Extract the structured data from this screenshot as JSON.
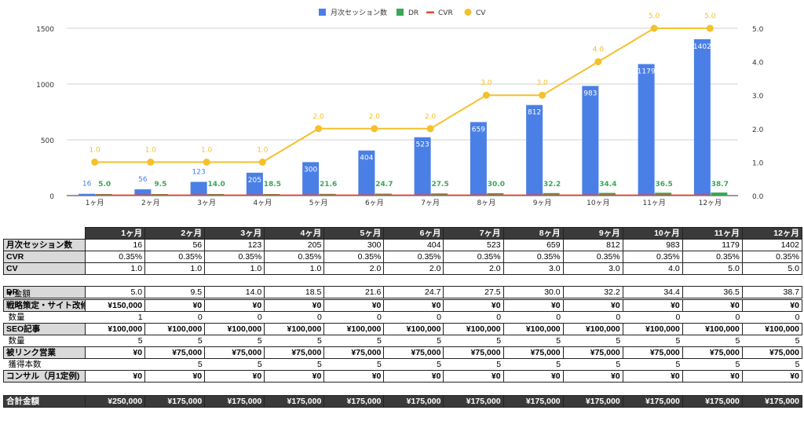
{
  "chart_data": {
    "type": "bar",
    "categories": [
      "1ヶ月",
      "2ヶ月",
      "3ヶ月",
      "4ヶ月",
      "5ヶ月",
      "6ヶ月",
      "7ヶ月",
      "8ヶ月",
      "9ヶ月",
      "10ヶ月",
      "11ヶ月",
      "12ヶ月"
    ],
    "series": [
      {
        "name": "月次セッション数",
        "type": "bar",
        "axis": "left",
        "color": "#4a7fe6",
        "values": [
          16,
          56,
          123,
          205,
          300,
          404,
          523,
          659,
          812,
          983,
          1179,
          1402
        ],
        "labels": [
          "16",
          "56",
          "123",
          "205",
          "300",
          "404",
          "523",
          "659",
          "812",
          "983",
          "1179",
          "1402"
        ]
      },
      {
        "name": "DR",
        "type": "bar",
        "axis": "right",
        "color": "#3aa757",
        "values": [
          5.0,
          9.5,
          14.0,
          18.5,
          21.6,
          24.7,
          27.5,
          30.0,
          32.2,
          34.4,
          36.5,
          38.7
        ],
        "labels": [
          "5.0",
          "9.5",
          "14.0",
          "18.5",
          "21.6",
          "24.7",
          "27.5",
          "30.0",
          "32.2",
          "34.4",
          "36.5",
          "38.7"
        ]
      },
      {
        "name": "CVR",
        "type": "line",
        "axis": "right",
        "color": "#e8453c",
        "values": [
          0.0035,
          0.0035,
          0.0035,
          0.0035,
          0.0035,
          0.0035,
          0.0035,
          0.0035,
          0.0035,
          0.0035,
          0.0035,
          0.0035
        ]
      },
      {
        "name": "CV",
        "type": "line",
        "axis": "right",
        "color": "#f4c12c",
        "values": [
          1.0,
          1.0,
          1.0,
          1.0,
          2.0,
          2.0,
          2.0,
          3.0,
          3.0,
          4.0,
          5.0,
          5.0
        ],
        "labels": [
          "1.0",
          "1.0",
          "1.0",
          "1.0",
          "2.0",
          "2.0",
          "2.0",
          "3.0",
          "3.0",
          "4.0",
          "5.0",
          "5.0"
        ]
      }
    ],
    "y_left": {
      "range": [
        0,
        1500
      ],
      "ticks": [
        "0",
        "500",
        "1000",
        "1500"
      ],
      "tick_values": [
        0,
        500,
        1000,
        1500
      ]
    },
    "y_right": {
      "range": [
        0,
        5.0
      ],
      "ticks": [
        "0.0",
        "1.0",
        "2.0",
        "3.0",
        "4.0",
        "5.0"
      ],
      "tick_values": [
        0,
        1,
        2,
        3,
        4,
        5
      ]
    },
    "legend_position": "top-center",
    "grid": true
  },
  "table": {
    "months": [
      "1ヶ月",
      "2ヶ月",
      "3ヶ月",
      "4ヶ月",
      "5ヶ月",
      "6ヶ月",
      "7ヶ月",
      "8ヶ月",
      "9ヶ月",
      "10ヶ月",
      "11ヶ月",
      "12ヶ月"
    ],
    "sessions": {
      "label": "月次セッション数",
      "values": [
        "16",
        "56",
        "123",
        "205",
        "300",
        "404",
        "523",
        "659",
        "812",
        "983",
        "1179",
        "1402"
      ]
    },
    "cvr": {
      "label": "CVR",
      "values": [
        "0.35%",
        "0.35%",
        "0.35%",
        "0.35%",
        "0.35%",
        "0.35%",
        "0.35%",
        "0.35%",
        "0.35%",
        "0.35%",
        "0.35%",
        "0.35%"
      ]
    },
    "cv": {
      "label": "CV",
      "values": [
        "1.0",
        "1.0",
        "1.0",
        "1.0",
        "2.0",
        "2.0",
        "2.0",
        "3.0",
        "3.0",
        "4.0",
        "5.0",
        "5.0"
      ]
    },
    "dr": {
      "label": "DR",
      "values": [
        "5.0",
        "9.5",
        "14.0",
        "18.5",
        "21.6",
        "24.7",
        "27.5",
        "30.0",
        "32.2",
        "34.4",
        "36.5",
        "38.7"
      ]
    },
    "section_label": "▼金額",
    "strategy": {
      "label": "戦略策定・サイト改修",
      "values": [
        "¥150,000",
        "¥0",
        "¥0",
        "¥0",
        "¥0",
        "¥0",
        "¥0",
        "¥0",
        "¥0",
        "¥0",
        "¥0",
        "¥0"
      ]
    },
    "strategy_qty": {
      "label": "数量",
      "values": [
        "1",
        "0",
        "0",
        "0",
        "0",
        "0",
        "0",
        "0",
        "0",
        "0",
        "0",
        "0"
      ]
    },
    "seo": {
      "label": "SEO記事",
      "values": [
        "¥100,000",
        "¥100,000",
        "¥100,000",
        "¥100,000",
        "¥100,000",
        "¥100,000",
        "¥100,000",
        "¥100,000",
        "¥100,000",
        "¥100,000",
        "¥100,000",
        "¥100,000"
      ]
    },
    "seo_qty": {
      "label": "数量",
      "values": [
        "5",
        "5",
        "5",
        "5",
        "5",
        "5",
        "5",
        "5",
        "5",
        "5",
        "5",
        "5"
      ]
    },
    "link": {
      "label": "被リンク営業",
      "values": [
        "¥0",
        "¥75,000",
        "¥75,000",
        "¥75,000",
        "¥75,000",
        "¥75,000",
        "¥75,000",
        "¥75,000",
        "¥75,000",
        "¥75,000",
        "¥75,000",
        "¥75,000"
      ]
    },
    "link_qty": {
      "label": "獲得本数",
      "values": [
        "",
        "5",
        "5",
        "5",
        "5",
        "5",
        "5",
        "5",
        "5",
        "5",
        "5",
        "5"
      ]
    },
    "consult": {
      "label": "コンサル（月1定例)",
      "values": [
        "¥0",
        "¥0",
        "¥0",
        "¥0",
        "¥0",
        "¥0",
        "¥0",
        "¥0",
        "¥0",
        "¥0",
        "¥0",
        "¥0"
      ]
    },
    "total": {
      "label": "合計金額",
      "values": [
        "¥250,000",
        "¥175,000",
        "¥175,000",
        "¥175,000",
        "¥175,000",
        "¥175,000",
        "¥175,000",
        "¥175,000",
        "¥175,000",
        "¥175,000",
        "¥175,000",
        "¥175,000"
      ]
    }
  }
}
